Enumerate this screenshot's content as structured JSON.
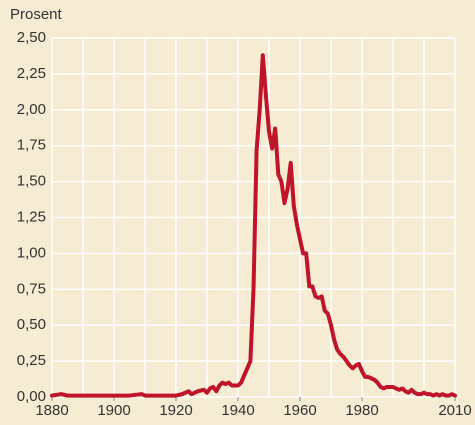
{
  "chart_data": {
    "type": "line",
    "axis_title": "Prosent",
    "x": [
      1880,
      1883,
      1885,
      1890,
      1895,
      1900,
      1905,
      1909,
      1910,
      1915,
      1920,
      1922,
      1924,
      1925,
      1927,
      1929,
      1930,
      1931,
      1932,
      1933,
      1934,
      1935,
      1936,
      1937,
      1938,
      1939,
      1940,
      1941,
      1942,
      1943,
      1944,
      1945,
      1946,
      1947,
      1948,
      1949,
      1950,
      1951,
      1952,
      1953,
      1954,
      1955,
      1956,
      1957,
      1958,
      1959,
      1960,
      1961,
      1962,
      1963,
      1964,
      1965,
      1966,
      1967,
      1968,
      1969,
      1970,
      1971,
      1972,
      1973,
      1974,
      1975,
      1976,
      1977,
      1978,
      1979,
      1980,
      1981,
      1982,
      1983,
      1984,
      1985,
      1986,
      1987,
      1988,
      1989,
      1990,
      1991,
      1992,
      1993,
      1994,
      1995,
      1996,
      1997,
      1998,
      1999,
      2000,
      2001,
      2002,
      2003,
      2004,
      2005,
      2006,
      2007,
      2008,
      2009,
      2010
    ],
    "series": [
      {
        "name": "Prosent",
        "color": "#c0142b",
        "values": [
          0.01,
          0.02,
          0.01,
          0.01,
          0.01,
          0.01,
          0.01,
          0.02,
          0.01,
          0.01,
          0.01,
          0.02,
          0.04,
          0.02,
          0.04,
          0.05,
          0.03,
          0.06,
          0.07,
          0.04,
          0.08,
          0.1,
          0.09,
          0.1,
          0.08,
          0.08,
          0.08,
          0.1,
          0.15,
          0.2,
          0.25,
          0.75,
          1.72,
          2.0,
          2.38,
          2.1,
          1.85,
          1.73,
          1.87,
          1.55,
          1.5,
          1.35,
          1.45,
          1.63,
          1.33,
          1.2,
          1.1,
          1.0,
          1.0,
          0.77,
          0.77,
          0.7,
          0.69,
          0.7,
          0.6,
          0.58,
          0.5,
          0.4,
          0.33,
          0.3,
          0.28,
          0.25,
          0.22,
          0.2,
          0.22,
          0.23,
          0.18,
          0.14,
          0.14,
          0.13,
          0.12,
          0.1,
          0.07,
          0.06,
          0.07,
          0.07,
          0.07,
          0.06,
          0.05,
          0.06,
          0.04,
          0.03,
          0.05,
          0.03,
          0.02,
          0.02,
          0.03,
          0.02,
          0.02,
          0.01,
          0.02,
          0.01,
          0.02,
          0.01,
          0.01,
          0.02,
          0.01
        ]
      }
    ],
    "xlim": [
      1880,
      2010
    ],
    "xticks": [
      1880,
      1900,
      1920,
      1940,
      1960,
      1980,
      2010
    ],
    "xgrid": [
      1890,
      1900,
      1910,
      1920,
      1930,
      1940,
      1950,
      1960,
      1970,
      1980,
      1990,
      2000,
      2010
    ],
    "ylim": [
      0,
      2.5
    ],
    "yticks": [
      {
        "value": 0,
        "label": "0,00"
      },
      {
        "value": 0.25,
        "label": "0,25"
      },
      {
        "value": 0.5,
        "label": "0,50"
      },
      {
        "value": 0.75,
        "label": "0,75"
      },
      {
        "value": 1,
        "label": "1,00"
      },
      {
        "value": 1.25,
        "label": "1,25"
      },
      {
        "value": 1.5,
        "label": "1,50"
      },
      {
        "value": 1.75,
        "label": "1,75"
      },
      {
        "value": 2,
        "label": "2,00"
      },
      {
        "value": 2.25,
        "label": "2,25"
      },
      {
        "value": 2.5,
        "label": "2,50"
      }
    ],
    "grid": true
  }
}
